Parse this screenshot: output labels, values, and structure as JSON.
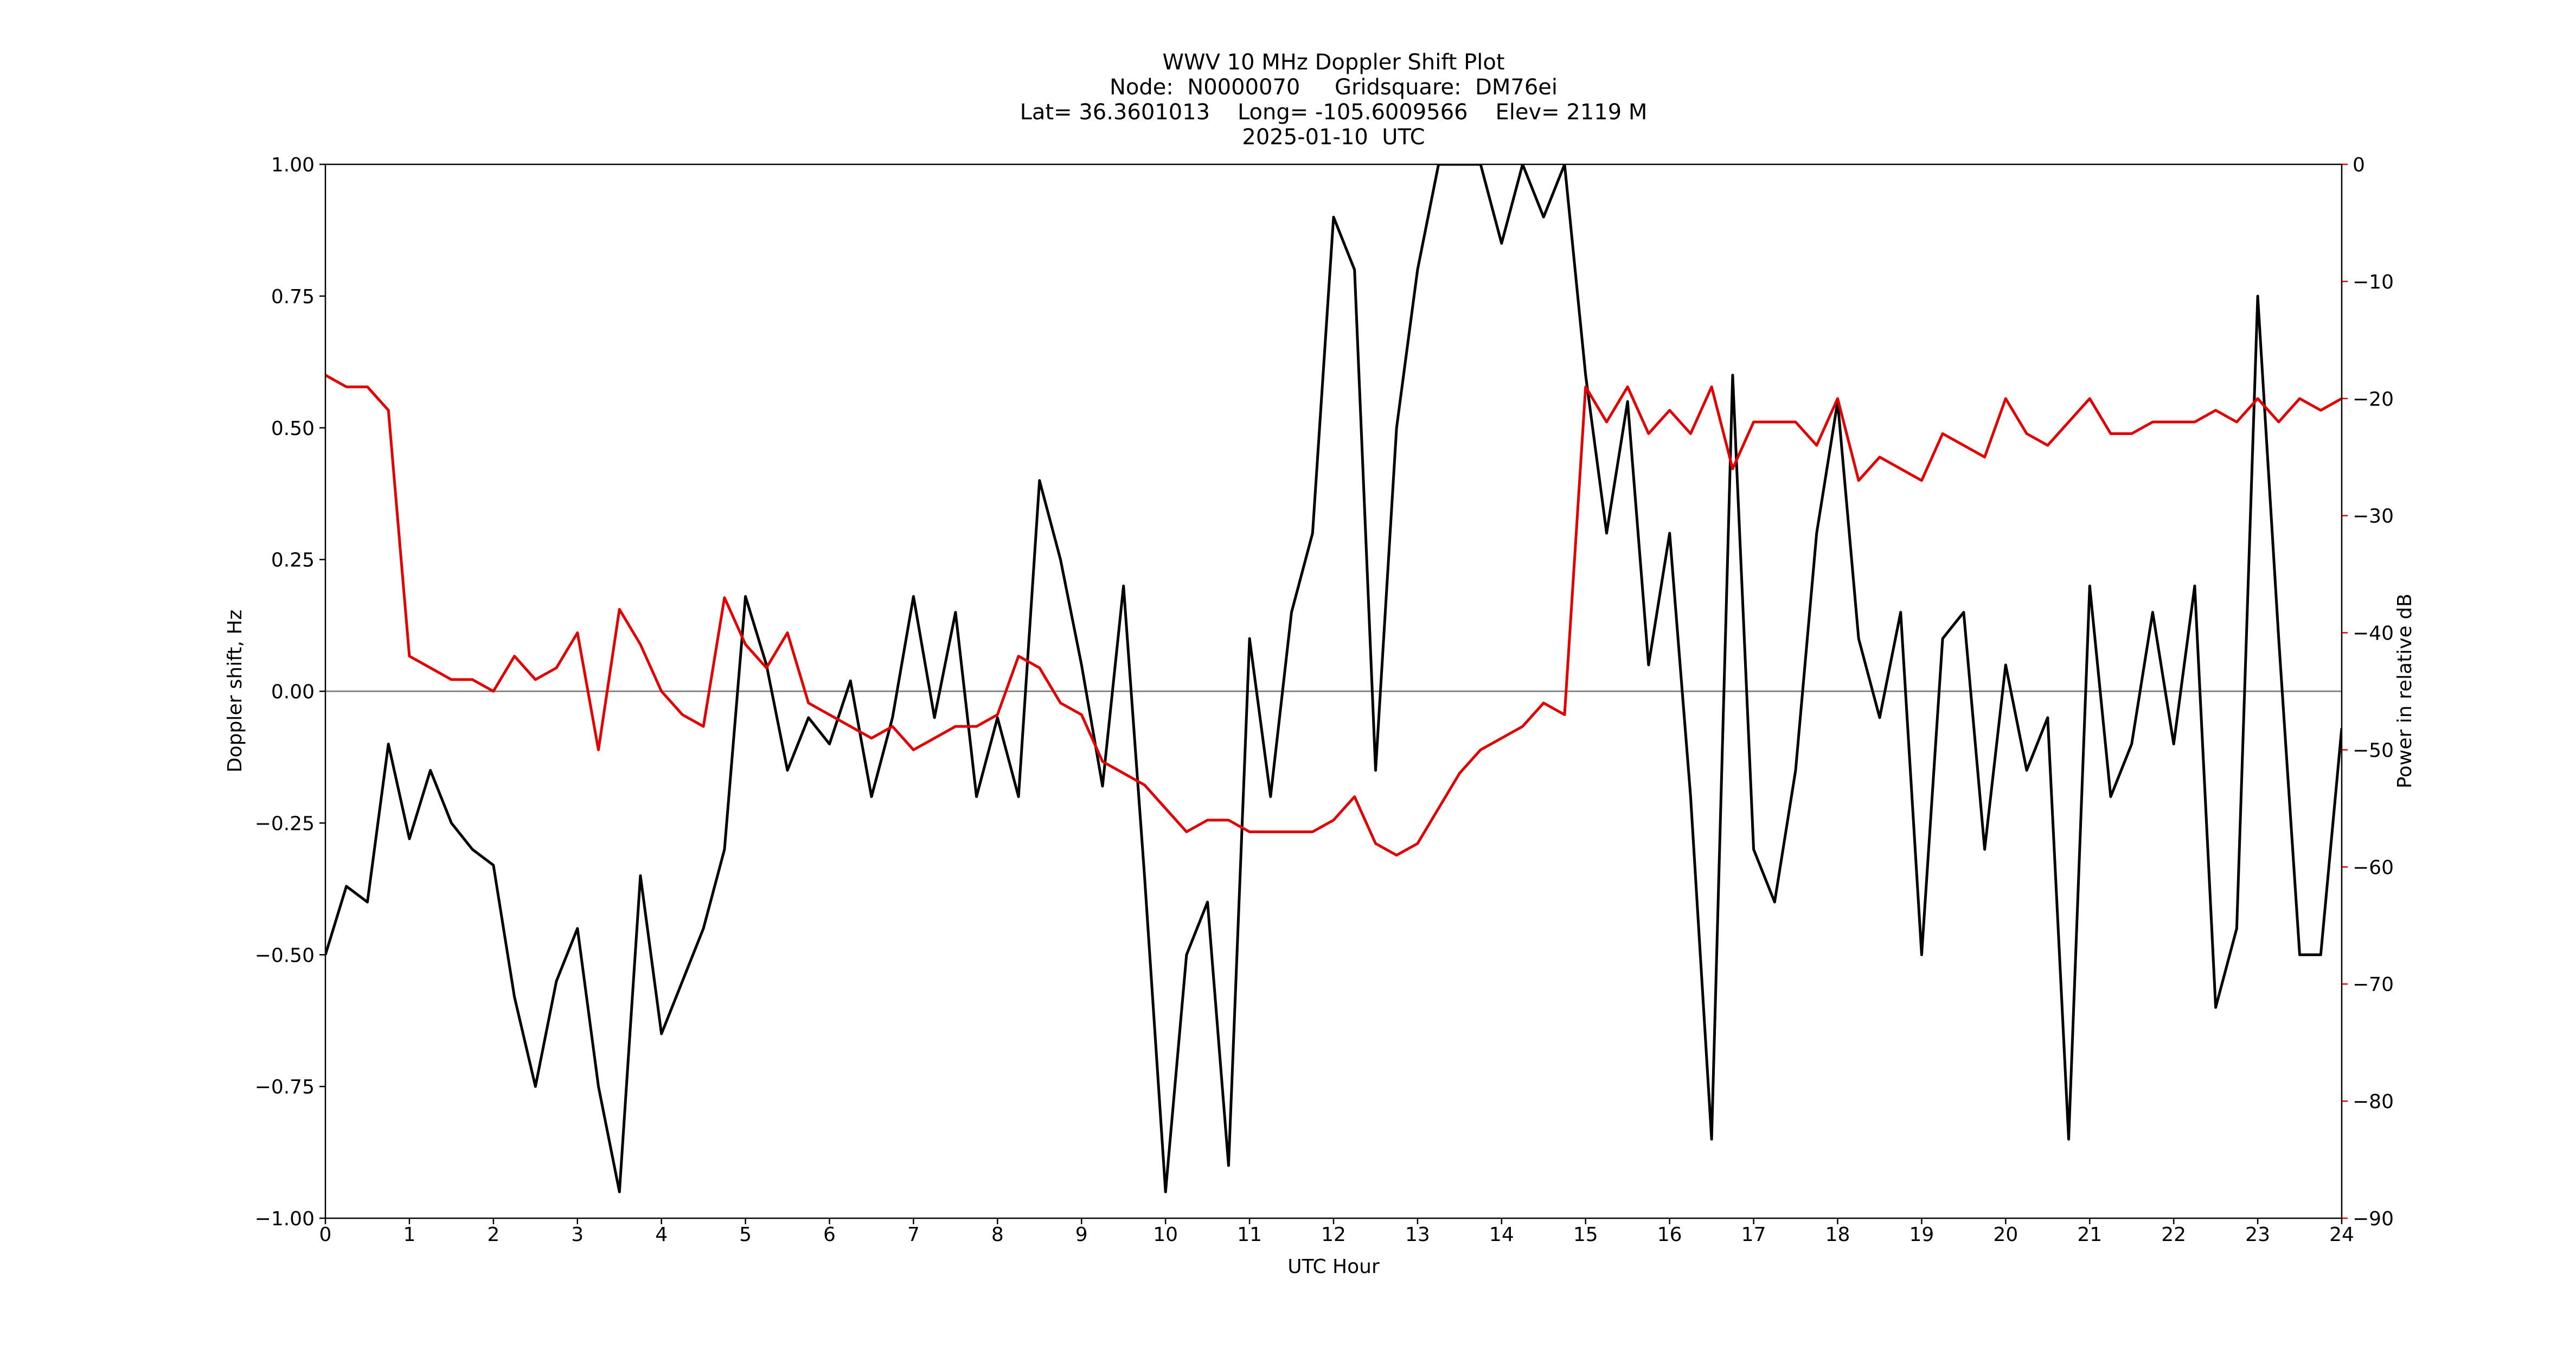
{
  "chart_data": {
    "type": "line",
    "title": "WWV 10 MHz Doppler Shift Plot",
    "subtitle": [
      "Node:  N0000070     Gridsquare:  DM76ei",
      "Lat= 36.3601013    Long= -105.6009566    Elev= 2119 M",
      "2025-01-10  UTC"
    ],
    "xlabel": "UTC Hour",
    "ylabel": "Doppler shift, Hz",
    "y2label": "Power in relative dB",
    "y2color": "#e00000",
    "x": [
      0,
      0.25,
      0.5,
      0.75,
      1,
      1.25,
      1.5,
      1.75,
      2,
      2.25,
      2.5,
      2.75,
      3,
      3.25,
      3.5,
      3.75,
      4,
      4.25,
      4.5,
      4.75,
      5,
      5.25,
      5.5,
      5.75,
      6,
      6.25,
      6.5,
      6.75,
      7,
      7.25,
      7.5,
      7.75,
      8,
      8.25,
      8.5,
      8.75,
      9,
      9.25,
      9.5,
      9.75,
      10,
      10.25,
      10.5,
      10.75,
      11,
      11.25,
      11.5,
      11.75,
      12,
      12.25,
      12.5,
      12.75,
      13,
      13.25,
      13.5,
      13.75,
      14,
      14.25,
      14.5,
      14.75,
      15,
      15.25,
      15.5,
      15.75,
      16,
      16.25,
      16.5,
      16.75,
      17,
      17.25,
      17.5,
      17.75,
      18,
      18.25,
      18.5,
      18.75,
      19,
      19.25,
      19.5,
      19.75,
      20,
      20.25,
      20.5,
      20.75,
      21,
      21.25,
      21.5,
      21.75,
      22,
      22.25,
      22.5,
      22.75,
      23,
      23.25,
      23.5,
      23.75,
      24
    ],
    "series": [
      {
        "color": "#000000",
        "axis": "y",
        "values": [
          -0.5,
          -0.37,
          -0.4,
          -0.1,
          -0.28,
          -0.15,
          -0.25,
          -0.3,
          -0.33,
          -0.58,
          -0.75,
          -0.55,
          -0.45,
          -0.75,
          -0.95,
          -0.35,
          -0.65,
          -0.55,
          -0.45,
          -0.3,
          0.18,
          0.05,
          -0.15,
          -0.05,
          -0.1,
          0.02,
          -0.2,
          -0.05,
          0.18,
          -0.05,
          0.15,
          -0.2,
          -0.05,
          -0.2,
          0.4,
          0.25,
          0.05,
          -0.18,
          0.2,
          -0.35,
          -0.95,
          -0.5,
          -0.4,
          -0.9,
          0.1,
          -0.2,
          0.15,
          0.3,
          0.9,
          0.8,
          -0.15,
          0.5,
          0.8,
          1,
          1,
          1,
          0.85,
          1,
          0.9,
          1,
          0.6,
          0.3,
          0.55,
          0.05,
          0.3,
          -0.2,
          -0.85,
          0.6,
          -0.3,
          -0.4,
          -0.15,
          0.3,
          0.55,
          0.1,
          -0.05,
          0.15,
          -0.5,
          0.1,
          0.15,
          -0.3,
          0.05,
          -0.15,
          -0.05,
          -0.85,
          0.2,
          -0.2,
          -0.1,
          0.15,
          -0.1,
          0.2,
          -0.6,
          -0.45,
          0.75,
          0.1,
          -0.5,
          -0.5,
          -0.07
        ]
      },
      {
        "color": "#e00000",
        "axis": "y2",
        "values": [
          -18,
          -19,
          -19,
          -21,
          -42,
          -43,
          -44,
          -44,
          -45,
          -42,
          -44,
          -43,
          -40,
          -50,
          -38,
          -41,
          -45,
          -47,
          -48,
          -37,
          -41,
          -43,
          -40,
          -46,
          -47,
          -48,
          -49,
          -48,
          -50,
          -49,
          -48,
          -48,
          -47,
          -42,
          -43,
          -46,
          -47,
          -51,
          -52,
          -53,
          -55,
          -57,
          -56,
          -56,
          -57,
          -57,
          -57,
          -57,
          -56,
          -54,
          -58,
          -59,
          -58,
          -55,
          -52,
          -50,
          -49,
          -48,
          -46,
          -47,
          -19,
          -22,
          -19,
          -23,
          -21,
          -23,
          -19,
          -26,
          -22,
          -22,
          -22,
          -24,
          -20,
          -27,
          -25,
          -26,
          -27,
          -23,
          -24,
          -25,
          -20,
          -23,
          -24,
          -22,
          -20,
          -23,
          -23,
          -22,
          -22,
          -22,
          -21,
          -22,
          -20,
          -22,
          -20,
          -21,
          -20
        ]
      }
    ],
    "xlim": [
      0,
      24
    ],
    "xticks": [
      0,
      1,
      2,
      3,
      4,
      5,
      6,
      7,
      8,
      9,
      10,
      11,
      12,
      13,
      14,
      15,
      16,
      17,
      18,
      19,
      20,
      21,
      22,
      23,
      24
    ],
    "ylim": [
      -1,
      1
    ],
    "yticks": [
      {
        "value": -1,
        "label": "−1.00"
      },
      {
        "value": -0.75,
        "label": "−0.75"
      },
      {
        "value": -0.5,
        "label": "−0.50"
      },
      {
        "value": -0.25,
        "label": "−0.25"
      },
      {
        "value": 0,
        "label": "0.00"
      },
      {
        "value": 0.25,
        "label": "0.25"
      },
      {
        "value": 0.5,
        "label": "0.50"
      },
      {
        "value": 0.75,
        "label": "0.75"
      },
      {
        "value": 1,
        "label": "1.00"
      }
    ],
    "y2lim": [
      -90,
      0
    ],
    "y2ticks": [
      0,
      {
        "value": -10,
        "label": "−10"
      },
      {
        "value": -20,
        "label": "−20"
      },
      {
        "value": -30,
        "label": "−30"
      },
      {
        "value": -40,
        "label": "−40"
      },
      {
        "value": -50,
        "label": "−50"
      },
      {
        "value": -60,
        "label": "−60"
      },
      {
        "value": -70,
        "label": "−70"
      },
      {
        "value": -80,
        "label": "−80"
      },
      {
        "value": -90,
        "label": "−90"
      }
    ],
    "grid": false
  }
}
